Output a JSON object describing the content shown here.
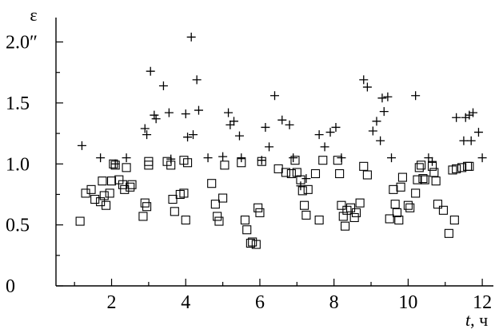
{
  "chart_data": {
    "type": "scatter",
    "title": "",
    "ylabel": "ε",
    "xlabel_italic": "t",
    "xlabel_unit": ", ч",
    "xlim": [
      0.5,
      12.3
    ],
    "ylim": [
      0,
      2.2
    ],
    "x_ticks": [
      2,
      4,
      6,
      8,
      10,
      12
    ],
    "x_tick_labels": [
      "2",
      "4",
      "6",
      "8",
      "10",
      "12"
    ],
    "y_ticks": [
      0,
      0.5,
      1.0,
      1.5,
      2.0
    ],
    "y_tick_labels": [
      "0",
      "0.5",
      "1.0",
      "1.5",
      "2.0″"
    ],
    "grid": false,
    "series": [
      {
        "marker": "plus",
        "points": [
          [
            1.2,
            1.15
          ],
          [
            1.7,
            1.05
          ],
          [
            2.1,
            1.0
          ],
          [
            2.4,
            1.05
          ],
          [
            2.9,
            1.29
          ],
          [
            2.95,
            1.24
          ],
          [
            3.05,
            1.76
          ],
          [
            3.15,
            1.4
          ],
          [
            3.2,
            1.37
          ],
          [
            3.4,
            1.64
          ],
          [
            3.55,
            1.42
          ],
          [
            3.6,
            1.04
          ],
          [
            4.0,
            1.41
          ],
          [
            4.05,
            1.22
          ],
          [
            4.15,
            2.04
          ],
          [
            4.2,
            1.24
          ],
          [
            4.3,
            1.69
          ],
          [
            4.35,
            1.44
          ],
          [
            4.6,
            1.05
          ],
          [
            5.0,
            1.06
          ],
          [
            5.15,
            1.42
          ],
          [
            5.2,
            1.32
          ],
          [
            5.3,
            1.35
          ],
          [
            5.45,
            1.23
          ],
          [
            5.5,
            1.05
          ],
          [
            6.05,
            1.03
          ],
          [
            6.15,
            1.3
          ],
          [
            6.25,
            1.14
          ],
          [
            6.4,
            1.56
          ],
          [
            6.6,
            1.36
          ],
          [
            6.8,
            1.32
          ],
          [
            6.9,
            1.05
          ],
          [
            7.1,
            0.82
          ],
          [
            7.25,
            0.88
          ],
          [
            7.6,
            1.24
          ],
          [
            7.75,
            1.14
          ],
          [
            7.9,
            1.26
          ],
          [
            8.05,
            1.3
          ],
          [
            8.2,
            1.05
          ],
          [
            8.8,
            1.69
          ],
          [
            8.9,
            1.63
          ],
          [
            9.05,
            1.27
          ],
          [
            9.15,
            1.35
          ],
          [
            9.25,
            1.19
          ],
          [
            9.3,
            1.54
          ],
          [
            9.35,
            1.43
          ],
          [
            9.45,
            1.55
          ],
          [
            9.55,
            1.05
          ],
          [
            10.2,
            1.56
          ],
          [
            10.55,
            1.05
          ],
          [
            10.65,
            1.02
          ],
          [
            11.3,
            1.38
          ],
          [
            11.5,
            1.19
          ],
          [
            11.55,
            1.38
          ],
          [
            11.65,
            1.4
          ],
          [
            11.7,
            1.19
          ],
          [
            11.75,
            1.42
          ],
          [
            11.9,
            1.26
          ],
          [
            12.0,
            1.05
          ]
        ]
      },
      {
        "marker": "square",
        "points": [
          [
            1.15,
            0.53
          ],
          [
            1.3,
            0.76
          ],
          [
            1.45,
            0.79
          ],
          [
            1.55,
            0.71
          ],
          [
            1.7,
            0.69
          ],
          [
            1.75,
            0.86
          ],
          [
            1.8,
            0.74
          ],
          [
            1.85,
            0.66
          ],
          [
            1.95,
            0.76
          ],
          [
            2.0,
            0.86
          ],
          [
            2.05,
            1.0
          ],
          [
            2.1,
            0.99
          ],
          [
            2.2,
            0.87
          ],
          [
            2.3,
            0.83
          ],
          [
            2.35,
            0.79
          ],
          [
            2.4,
            0.97
          ],
          [
            2.5,
            0.81
          ],
          [
            2.55,
            0.83
          ],
          [
            2.85,
            0.57
          ],
          [
            2.9,
            0.68
          ],
          [
            2.95,
            0.65
          ],
          [
            3.0,
            0.99
          ],
          [
            3.0,
            1.02
          ],
          [
            3.5,
            1.02
          ],
          [
            3.6,
            0.99
          ],
          [
            3.65,
            0.71
          ],
          [
            3.7,
            0.61
          ],
          [
            3.85,
            0.75
          ],
          [
            3.95,
            0.76
          ],
          [
            3.95,
            1.03
          ],
          [
            4.0,
            0.54
          ],
          [
            4.05,
            1.01
          ],
          [
            4.7,
            0.84
          ],
          [
            4.8,
            0.67
          ],
          [
            4.85,
            0.57
          ],
          [
            4.9,
            0.53
          ],
          [
            5.0,
            0.72
          ],
          [
            5.05,
            0.99
          ],
          [
            5.5,
            1.01
          ],
          [
            5.6,
            0.54
          ],
          [
            5.65,
            0.46
          ],
          [
            5.75,
            0.35
          ],
          [
            5.8,
            0.36
          ],
          [
            5.9,
            0.34
          ],
          [
            5.95,
            0.64
          ],
          [
            6.0,
            0.6
          ],
          [
            6.05,
            1.02
          ],
          [
            6.5,
            0.96
          ],
          [
            6.7,
            0.93
          ],
          [
            6.85,
            0.92
          ],
          [
            6.95,
            1.03
          ],
          [
            7.0,
            0.93
          ],
          [
            7.1,
            0.87
          ],
          [
            7.15,
            0.78
          ],
          [
            7.2,
            0.66
          ],
          [
            7.25,
            0.58
          ],
          [
            7.3,
            0.79
          ],
          [
            7.5,
            0.92
          ],
          [
            7.6,
            0.54
          ],
          [
            7.7,
            1.03
          ],
          [
            8.1,
            1.03
          ],
          [
            8.15,
            0.92
          ],
          [
            8.2,
            0.66
          ],
          [
            8.25,
            0.57
          ],
          [
            8.3,
            0.49
          ],
          [
            8.35,
            0.62
          ],
          [
            8.45,
            0.64
          ],
          [
            8.55,
            0.56
          ],
          [
            8.6,
            0.6
          ],
          [
            8.7,
            0.68
          ],
          [
            8.8,
            0.98
          ],
          [
            8.9,
            0.91
          ],
          [
            9.5,
            0.55
          ],
          [
            9.6,
            0.79
          ],
          [
            9.65,
            0.67
          ],
          [
            9.7,
            0.6
          ],
          [
            9.75,
            0.54
          ],
          [
            9.8,
            0.81
          ],
          [
            9.85,
            0.89
          ],
          [
            10.0,
            0.66
          ],
          [
            10.05,
            0.64
          ],
          [
            10.2,
            0.76
          ],
          [
            10.25,
            0.87
          ],
          [
            10.3,
            0.97
          ],
          [
            10.35,
            0.99
          ],
          [
            10.4,
            0.88
          ],
          [
            10.45,
            0.87
          ],
          [
            10.65,
            0.98
          ],
          [
            10.7,
            0.93
          ],
          [
            10.75,
            0.86
          ],
          [
            10.8,
            0.67
          ],
          [
            10.95,
            0.62
          ],
          [
            11.1,
            0.43
          ],
          [
            11.2,
            0.95
          ],
          [
            11.25,
            0.54
          ],
          [
            11.3,
            0.96
          ],
          [
            11.45,
            0.97
          ],
          [
            11.6,
            0.98
          ],
          [
            11.65,
            0.98
          ]
        ]
      }
    ]
  }
}
